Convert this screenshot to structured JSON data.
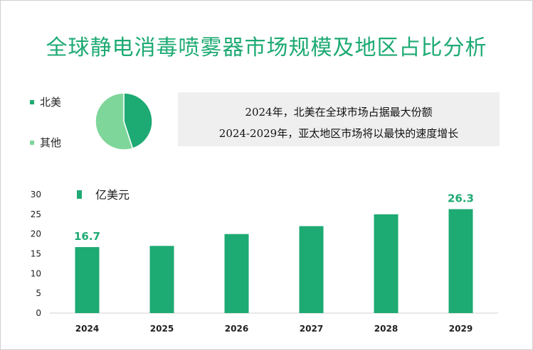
{
  "title": "全球静电消毒喷雾器市场规模及地区占比分析",
  "pie": {
    "legend": [
      {
        "label": "北美",
        "color": "#1daa73"
      },
      {
        "label": "其他",
        "color": "#7fd69b"
      }
    ],
    "shares": [
      0.45,
      0.55
    ]
  },
  "info": {
    "line1": "2024年，北美在全球市场占据最大份额",
    "line2": "2024-2029年，亚太地区市场将以最快的速度增长"
  },
  "chart_data": {
    "type": "bar",
    "categories": [
      "2024",
      "2025",
      "2026",
      "2027",
      "2028",
      "2029"
    ],
    "series": [
      {
        "name": "亿美元",
        "values": [
          16.7,
          17.0,
          20.0,
          22.0,
          25.0,
          26.3
        ],
        "color": "#1daa73"
      }
    ],
    "data_labels": [
      {
        "index": 0,
        "text": "16.7"
      },
      {
        "index": 5,
        "text": "26.3"
      }
    ],
    "ylim": [
      0,
      30
    ],
    "yticks": [
      0,
      5,
      10,
      15,
      20,
      25,
      30
    ],
    "grid": false,
    "legend_position": "top-left"
  }
}
